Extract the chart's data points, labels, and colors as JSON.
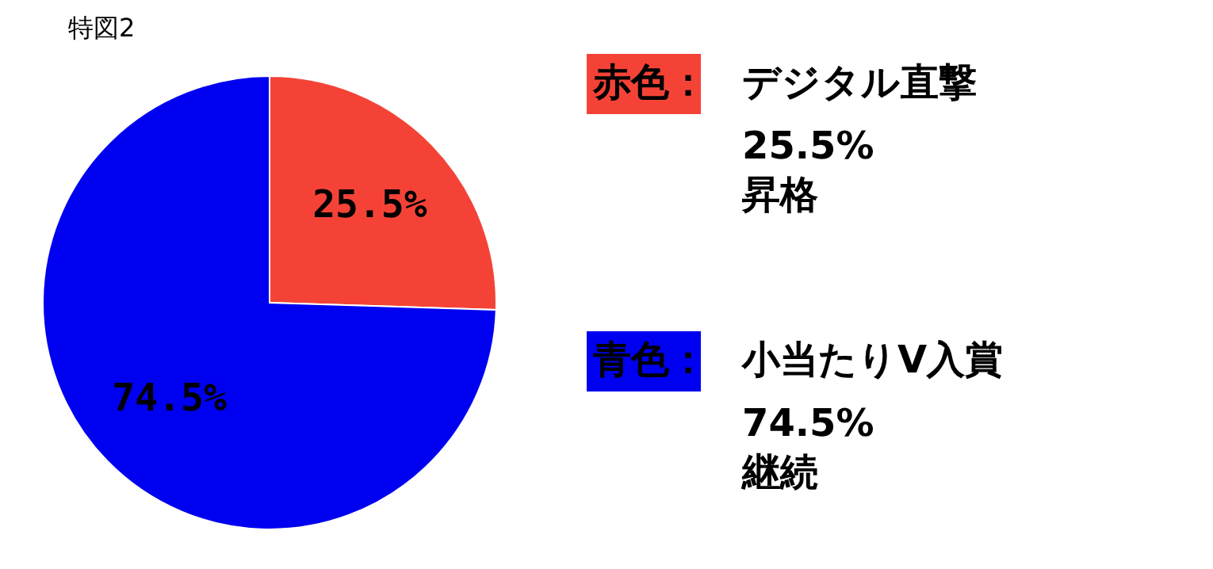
{
  "chart_data": {
    "type": "pie",
    "title": "特図2",
    "categories": [
      "デジタル直撃",
      "小当たりV入賞"
    ],
    "values": [
      25.5,
      74.5
    ],
    "colors": [
      "#f44336",
      "#0000f0"
    ],
    "value_labels": [
      "25.5%",
      "74.5%"
    ],
    "legend": "right",
    "annotations": [
      "赤色：",
      "昇格",
      "青色：",
      "継続"
    ]
  }
}
